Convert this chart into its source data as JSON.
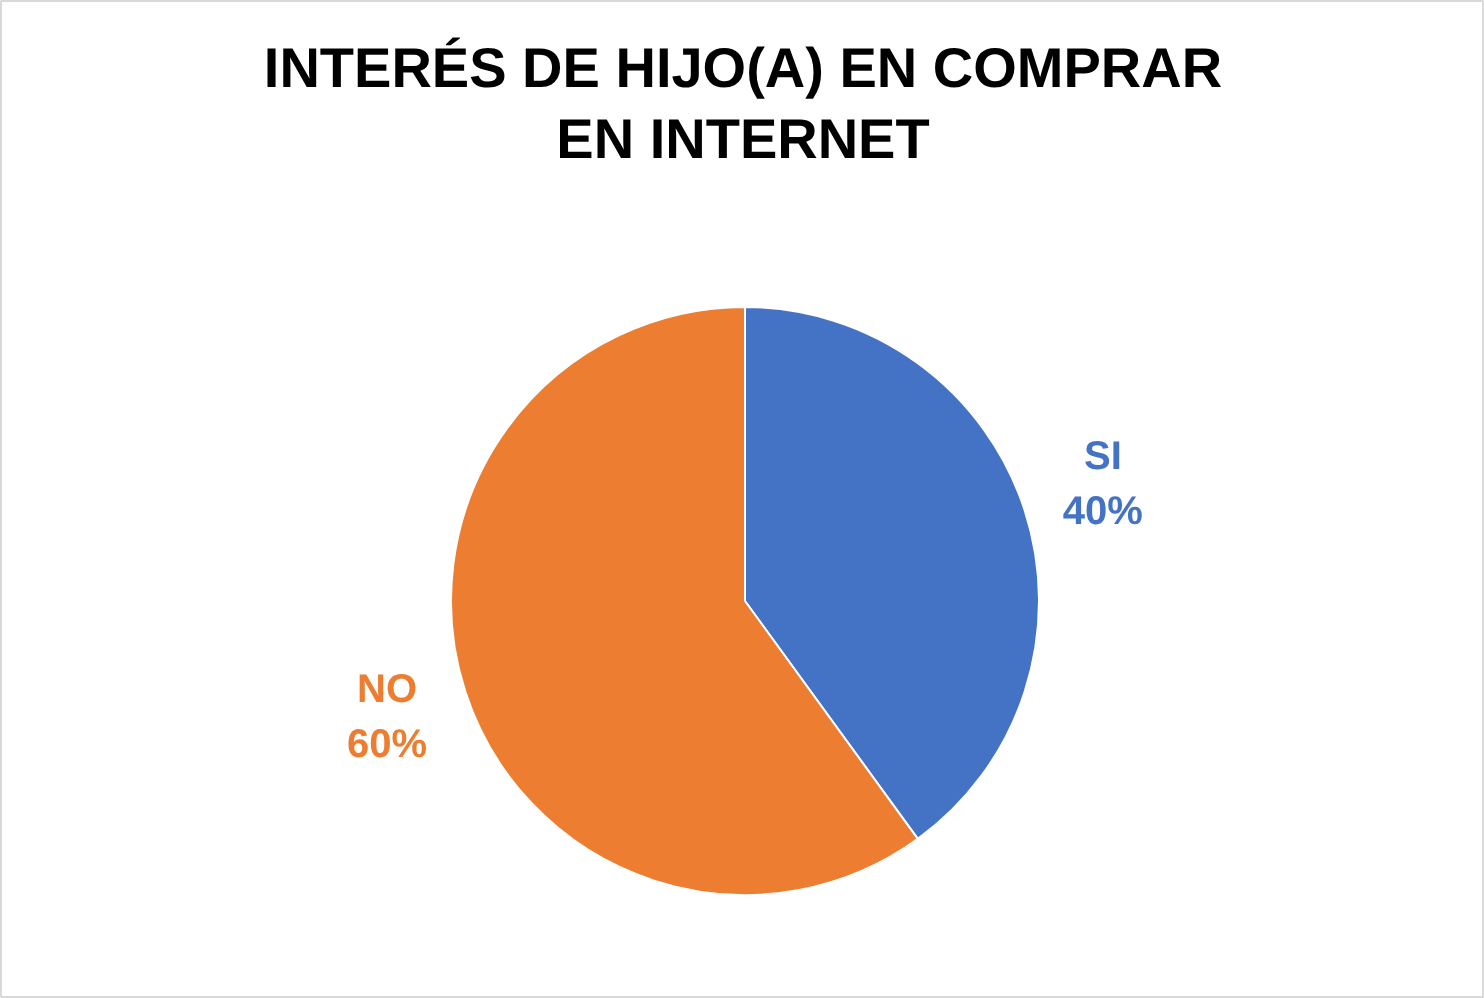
{
  "chart_data": {
    "type": "pie",
    "title": "INTERÉS DE HIJO(A) EN COMPRAR EN INTERNET",
    "categories": [
      "SI",
      "NO"
    ],
    "values": [
      40,
      60
    ],
    "colors": [
      "#4472c4",
      "#ed7d31"
    ],
    "value_labels": [
      "40%",
      "60%"
    ]
  }
}
